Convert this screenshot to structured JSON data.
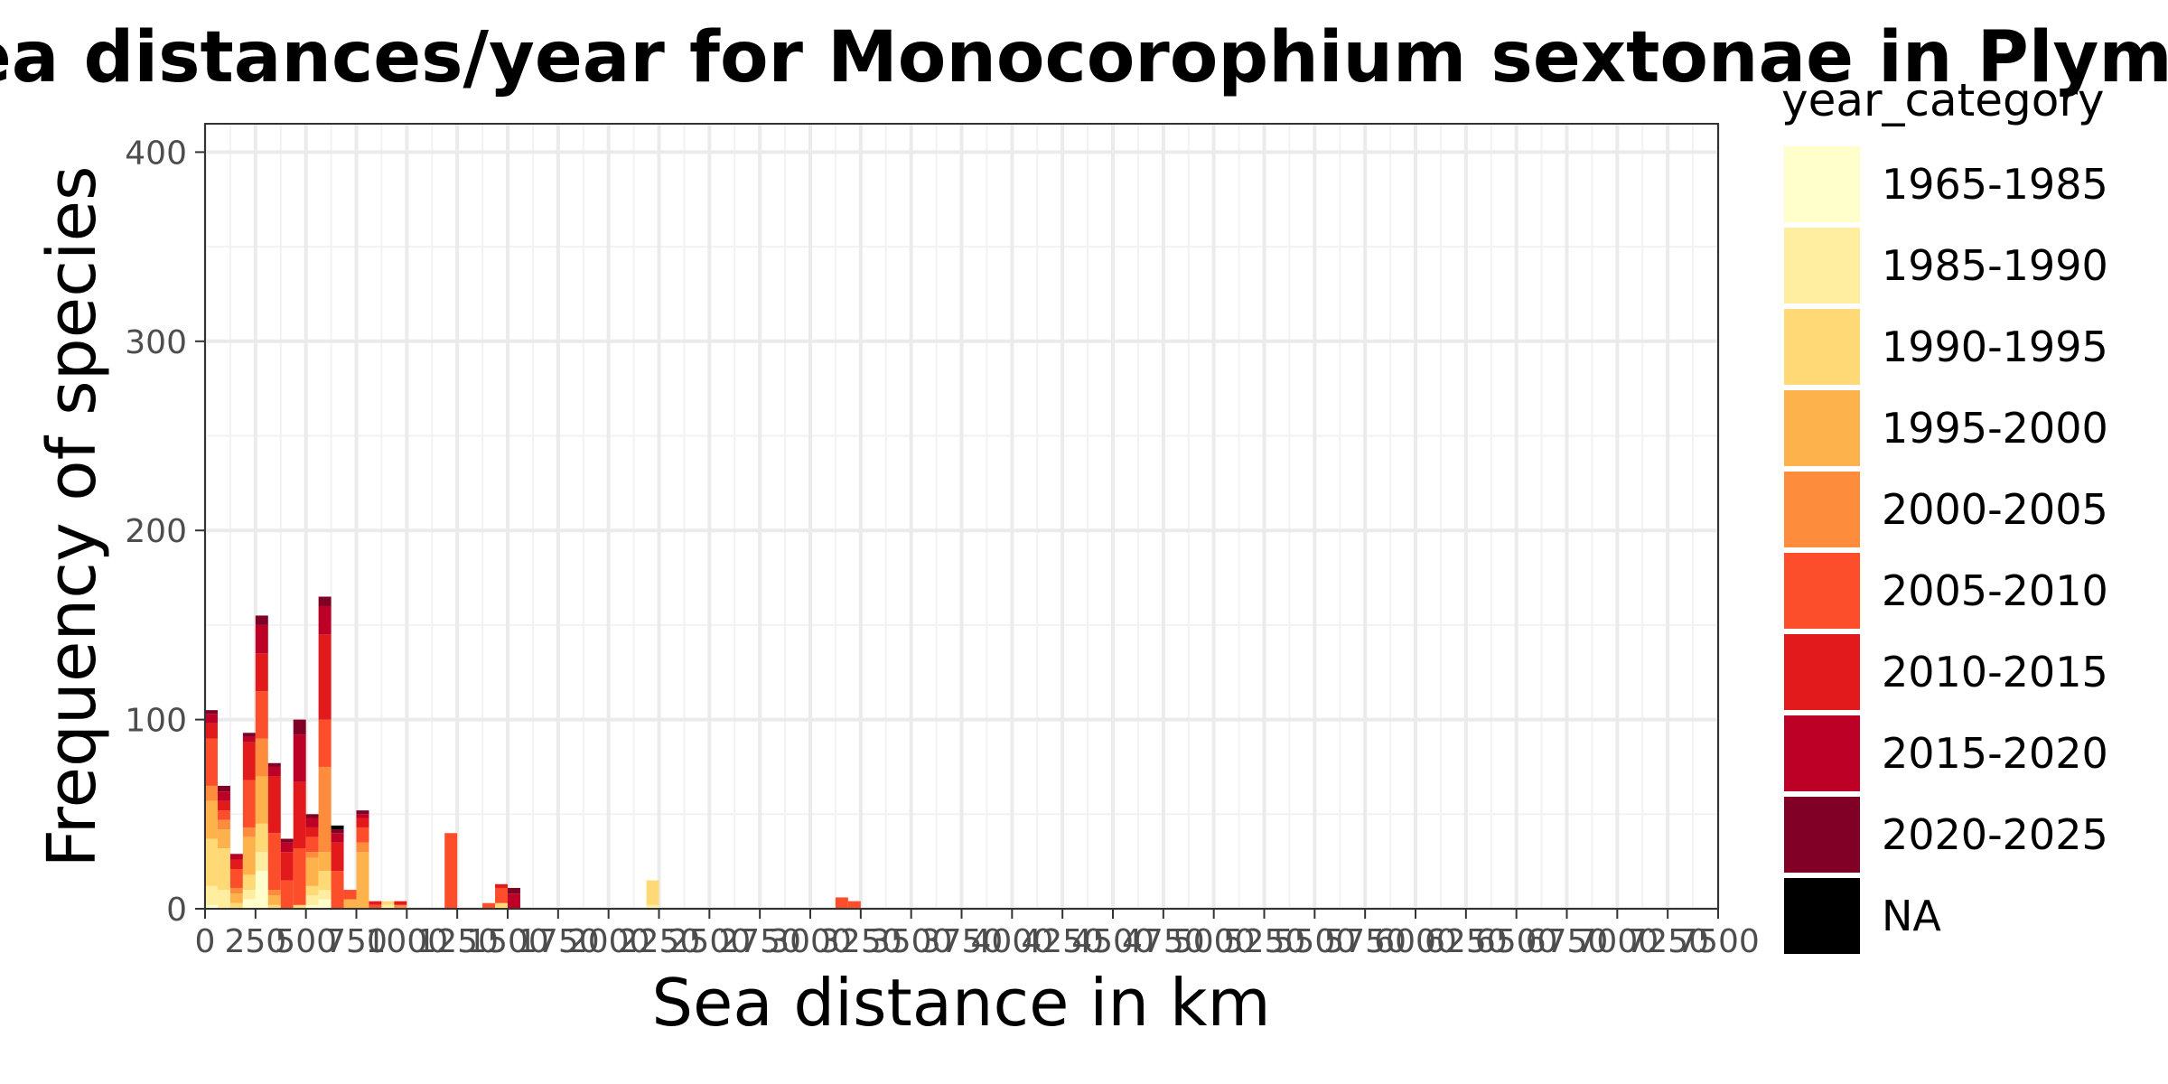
{
  "chart_data": {
    "type": "bar",
    "stacked": true,
    "title": "s of Sea distances/year for Monocorophium sextonae in Plym",
    "xlabel": "Sea distance in km",
    "ylabel": "Frequency of species",
    "xlim": [
      0,
      7500
    ],
    "ylim": [
      0,
      415
    ],
    "bin_width": 62.5,
    "x_ticks": [
      0,
      250,
      500,
      750,
      1000,
      1250,
      1500,
      1750,
      2000,
      2250,
      2500,
      2750,
      3000,
      3250,
      3500,
      3750,
      4000,
      4250,
      4500,
      4750,
      5000,
      5250,
      5500,
      5750,
      6000,
      6250,
      6500,
      6750,
      7000,
      7250,
      7500
    ],
    "y_ticks": [
      0,
      100,
      200,
      300,
      400
    ],
    "grid": true,
    "legend": {
      "title": "year_category",
      "placement": "right",
      "entries": [
        {
          "label": "1965-1985",
          "color": "#FFFFCC"
        },
        {
          "label": "1985-1990",
          "color": "#FFEDA0"
        },
        {
          "label": "1990-1995",
          "color": "#FED976"
        },
        {
          "label": "1995-2000",
          "color": "#FEB24C"
        },
        {
          "label": "2000-2005",
          "color": "#FD8D3C"
        },
        {
          "label": "2005-2010",
          "color": "#FC4E2A"
        },
        {
          "label": "2010-2015",
          "color": "#E31A1C"
        },
        {
          "label": "2015-2020",
          "color": "#BD0026"
        },
        {
          "label": "2020-2025",
          "color": "#800026"
        },
        {
          "label": "NA",
          "color": "#000000"
        }
      ]
    },
    "categories": [
      "0-62.5",
      "62.5-125",
      "125-187.5",
      "187.5-250",
      "250-312.5",
      "312.5-375",
      "375-437.5",
      "437.5-500",
      "500-562.5",
      "562.5-625",
      "625-687.5",
      "687.5-750",
      "750-812.5",
      "812.5-875",
      "875-937.5",
      "937.5-1000",
      "1187.5-1250",
      "1375-1437.5",
      "1437.5-1500",
      "1500-1562.5",
      "2187.5-2250",
      "3125-3187.5",
      "3187.5-3250"
    ],
    "bin_starts": [
      0,
      62.5,
      125,
      187.5,
      250,
      312.5,
      375,
      437.5,
      500,
      562.5,
      625,
      687.5,
      750,
      812.5,
      875,
      937.5,
      1187.5,
      1375,
      1437.5,
      1500,
      2187.5,
      3125,
      3187.5
    ],
    "series": [
      {
        "name": "1965-1985",
        "values": [
          2,
          0,
          0,
          5,
          20,
          0,
          0,
          0,
          2,
          5,
          0,
          0,
          0,
          0,
          0,
          0,
          0,
          0,
          0,
          0,
          0,
          0,
          0
        ]
      },
      {
        "name": "1985-1990",
        "values": [
          10,
          10,
          0,
          5,
          10,
          0,
          0,
          0,
          5,
          5,
          0,
          0,
          0,
          0,
          2,
          0,
          0,
          0,
          0,
          0,
          2,
          0,
          0
        ]
      },
      {
        "name": "1990-1995",
        "values": [
          25,
          22,
          3,
          8,
          15,
          2,
          0,
          2,
          5,
          10,
          0,
          0,
          0,
          0,
          2,
          0,
          0,
          0,
          3,
          0,
          13,
          0,
          0
        ]
      },
      {
        "name": "1995-2000",
        "values": [
          20,
          10,
          5,
          20,
          25,
          5,
          0,
          0,
          15,
          10,
          0,
          5,
          30,
          0,
          0,
          0,
          0,
          0,
          0,
          0,
          0,
          0,
          0
        ]
      },
      {
        "name": "2000-2005",
        "values": [
          8,
          5,
          3,
          5,
          20,
          3,
          0,
          0,
          3,
          45,
          0,
          0,
          5,
          0,
          0,
          2,
          0,
          0,
          0,
          0,
          0,
          0,
          0
        ]
      },
      {
        "name": "2005-2010",
        "values": [
          25,
          5,
          10,
          25,
          25,
          30,
          15,
          30,
          8,
          25,
          20,
          5,
          8,
          2,
          0,
          0,
          40,
          3,
          8,
          0,
          0,
          6,
          4
        ]
      },
      {
        "name": "2010-2015",
        "values": [
          8,
          5,
          5,
          20,
          20,
          30,
          15,
          35,
          5,
          45,
          15,
          0,
          5,
          2,
          0,
          2,
          0,
          0,
          2,
          0,
          0,
          0,
          0
        ]
      },
      {
        "name": "2015-2020",
        "values": [
          5,
          5,
          3,
          3,
          15,
          5,
          5,
          25,
          5,
          15,
          5,
          0,
          2,
          0,
          0,
          0,
          0,
          0,
          0,
          8,
          0,
          0,
          0
        ]
      },
      {
        "name": "2020-2025",
        "values": [
          2,
          3,
          0,
          2,
          5,
          2,
          2,
          8,
          2,
          5,
          2,
          0,
          2,
          0,
          0,
          0,
          0,
          0,
          0,
          3,
          0,
          0,
          0
        ]
      },
      {
        "name": "NA",
        "values": [
          0,
          0,
          0,
          0,
          0,
          0,
          0,
          0,
          0,
          0,
          2,
          0,
          0,
          0,
          0,
          0,
          0,
          0,
          0,
          0,
          0,
          0,
          0
        ]
      }
    ]
  }
}
